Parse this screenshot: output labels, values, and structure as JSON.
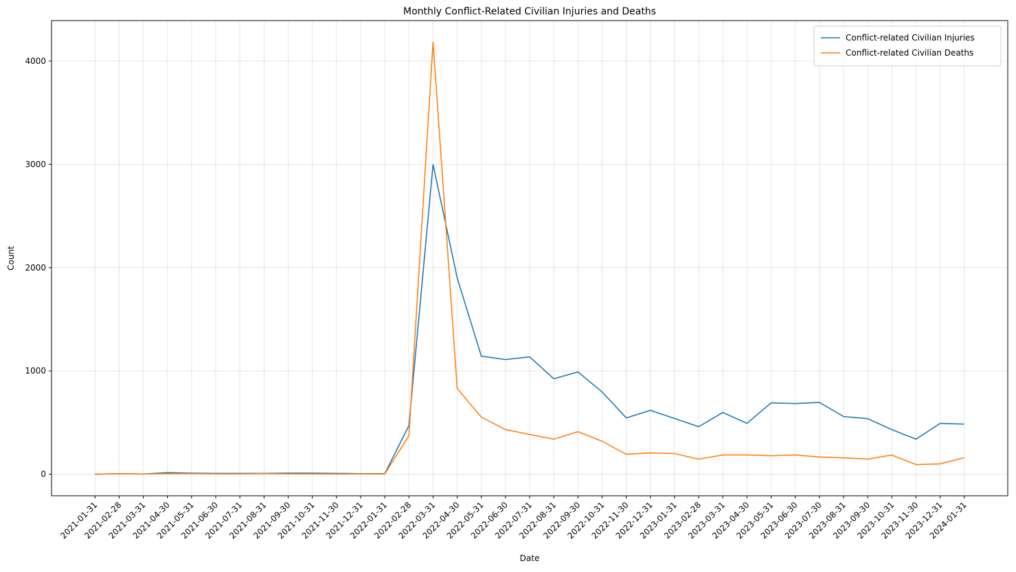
{
  "chart_data": {
    "type": "line",
    "title": "Monthly Conflict-Related Civilian Injuries and Deaths",
    "xlabel": "Date",
    "ylabel": "Count",
    "categories": [
      "2021-01-31",
      "2021-02-28",
      "2021-03-31",
      "2021-04-30",
      "2021-05-31",
      "2021-06-30",
      "2021-07-31",
      "2021-08-31",
      "2021-09-30",
      "2021-10-31",
      "2021-11-30",
      "2021-12-31",
      "2022-01-31",
      "2022-02-28",
      "2022-03-31",
      "2022-04-30",
      "2022-05-31",
      "2022-06-30",
      "2022-07-31",
      "2022-08-31",
      "2022-09-30",
      "2022-10-31",
      "2022-11-30",
      "2022-12-31",
      "2023-01-31",
      "2023-02-28",
      "2023-03-31",
      "2023-04-30",
      "2023-05-31",
      "2023-06-30",
      "2023-07-30",
      "2023-08-31",
      "2023-09-30",
      "2023-10-31",
      "2023-11-30",
      "2023-12-31",
      "2024-01-31"
    ],
    "series": [
      {
        "name": "Conflict-related Civilian Injuries",
        "color": "#1f77b4",
        "values": [
          0,
          5,
          2,
          15,
          10,
          8,
          8,
          8,
          10,
          10,
          8,
          5,
          5,
          470,
          3000,
          1900,
          1143,
          1110,
          1136,
          924,
          990,
          797,
          545,
          618,
          540,
          460,
          598,
          492,
          691,
          684,
          695,
          558,
          538,
          432,
          339,
          492,
          485
        ]
      },
      {
        "name": "Conflict-related Civilian Deaths",
        "color": "#ff7f0e",
        "values": [
          0,
          5,
          2,
          5,
          5,
          3,
          3,
          5,
          3,
          3,
          2,
          3,
          2,
          372,
          4186,
          830,
          552,
          432,
          385,
          339,
          412,
          319,
          193,
          206,
          200,
          146,
          186,
          186,
          179,
          186,
          166,
          159,
          146,
          186,
          93,
          100,
          159
        ]
      }
    ],
    "ylim": [
      -209,
      4392
    ],
    "yticks": [
      0,
      1000,
      2000,
      3000,
      4000
    ],
    "grid": true,
    "legend": "upper right"
  }
}
